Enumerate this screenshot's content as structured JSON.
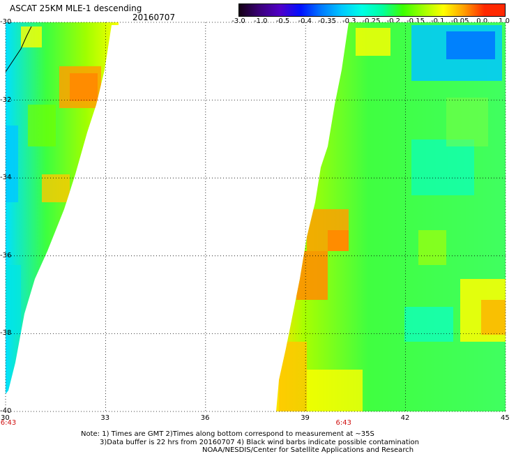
{
  "title": {
    "main": "ASCAT 25KM MLE-1 descending",
    "date": "20160707"
  },
  "colorbar": {
    "labels": [
      "-3.0",
      "-1.0",
      "-0.5",
      "-0.4",
      "-0.35",
      "-0.3",
      "-0.25",
      "-0.2",
      "-0.15",
      "-0.1",
      "-0.05",
      "0.0",
      "1.0"
    ],
    "colors": [
      "#140014",
      "#3a0078",
      "#5000c8",
      "#0010ff",
      "#0078ff",
      "#00c8ff",
      "#00ffe6",
      "#00ffa0",
      "#3cff00",
      "#a0ff00",
      "#ffff00",
      "#ffa000",
      "#ff2800"
    ]
  },
  "map": {
    "lon_ticks": [
      "30",
      "33",
      "36",
      "39",
      "42",
      "45"
    ],
    "lat_ticks": [
      "-30",
      "-32",
      "-34",
      "-36",
      "-38",
      "-40"
    ],
    "lon_range": [
      30,
      45
    ],
    "lat_range": [
      -30,
      -40
    ],
    "times": [
      {
        "label": "6:43",
        "lon": 30
      },
      {
        "label": "6:43",
        "lon": 40.1
      }
    ]
  },
  "notes": {
    "line1": "Note: 1) Times are GMT 2)Times along bottom correspond to measurement at ~35S",
    "line2": "3)Data buffer is 22 hrs from 20160707 4) Black wind barbs indicate possible contamination",
    "line3": "NOAA/NESDIS/Center for Satellite Applications and Research"
  }
}
